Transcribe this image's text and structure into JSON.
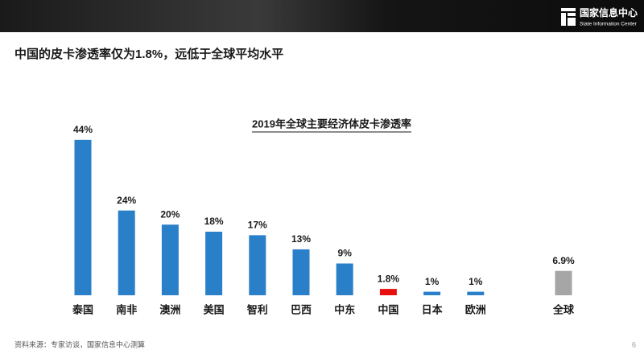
{
  "header": {
    "logo_name": "国家信息中心",
    "logo_subtitle": "State Information Center"
  },
  "heading": "中国的皮卡渗透率仅为1.8%，远低于全球平均水平",
  "chart_data": {
    "type": "bar",
    "title": "2019年全球主要经济体皮卡渗透率",
    "categories": [
      "泰国",
      "南非",
      "澳洲",
      "美国",
      "智利",
      "巴西",
      "中东",
      "中国",
      "日本",
      "欧洲",
      "全球"
    ],
    "values": [
      44,
      24,
      20,
      18,
      17,
      13,
      9,
      1.8,
      1,
      1,
      6.9
    ],
    "value_labels": [
      "44%",
      "24%",
      "20%",
      "18%",
      "17%",
      "13%",
      "9%",
      "1.8%",
      "1%",
      "1%",
      "6.9%"
    ],
    "colors": [
      "#2a7fc9",
      "#2a7fc9",
      "#2a7fc9",
      "#2a7fc9",
      "#2a7fc9",
      "#2a7fc9",
      "#2a7fc9",
      "#e8100f",
      "#2a7fc9",
      "#2a7fc9",
      "#a6a6a6"
    ]
  },
  "footer": {
    "source": "资料来源：专家访谈，国家信息中心测算",
    "page": "6"
  }
}
